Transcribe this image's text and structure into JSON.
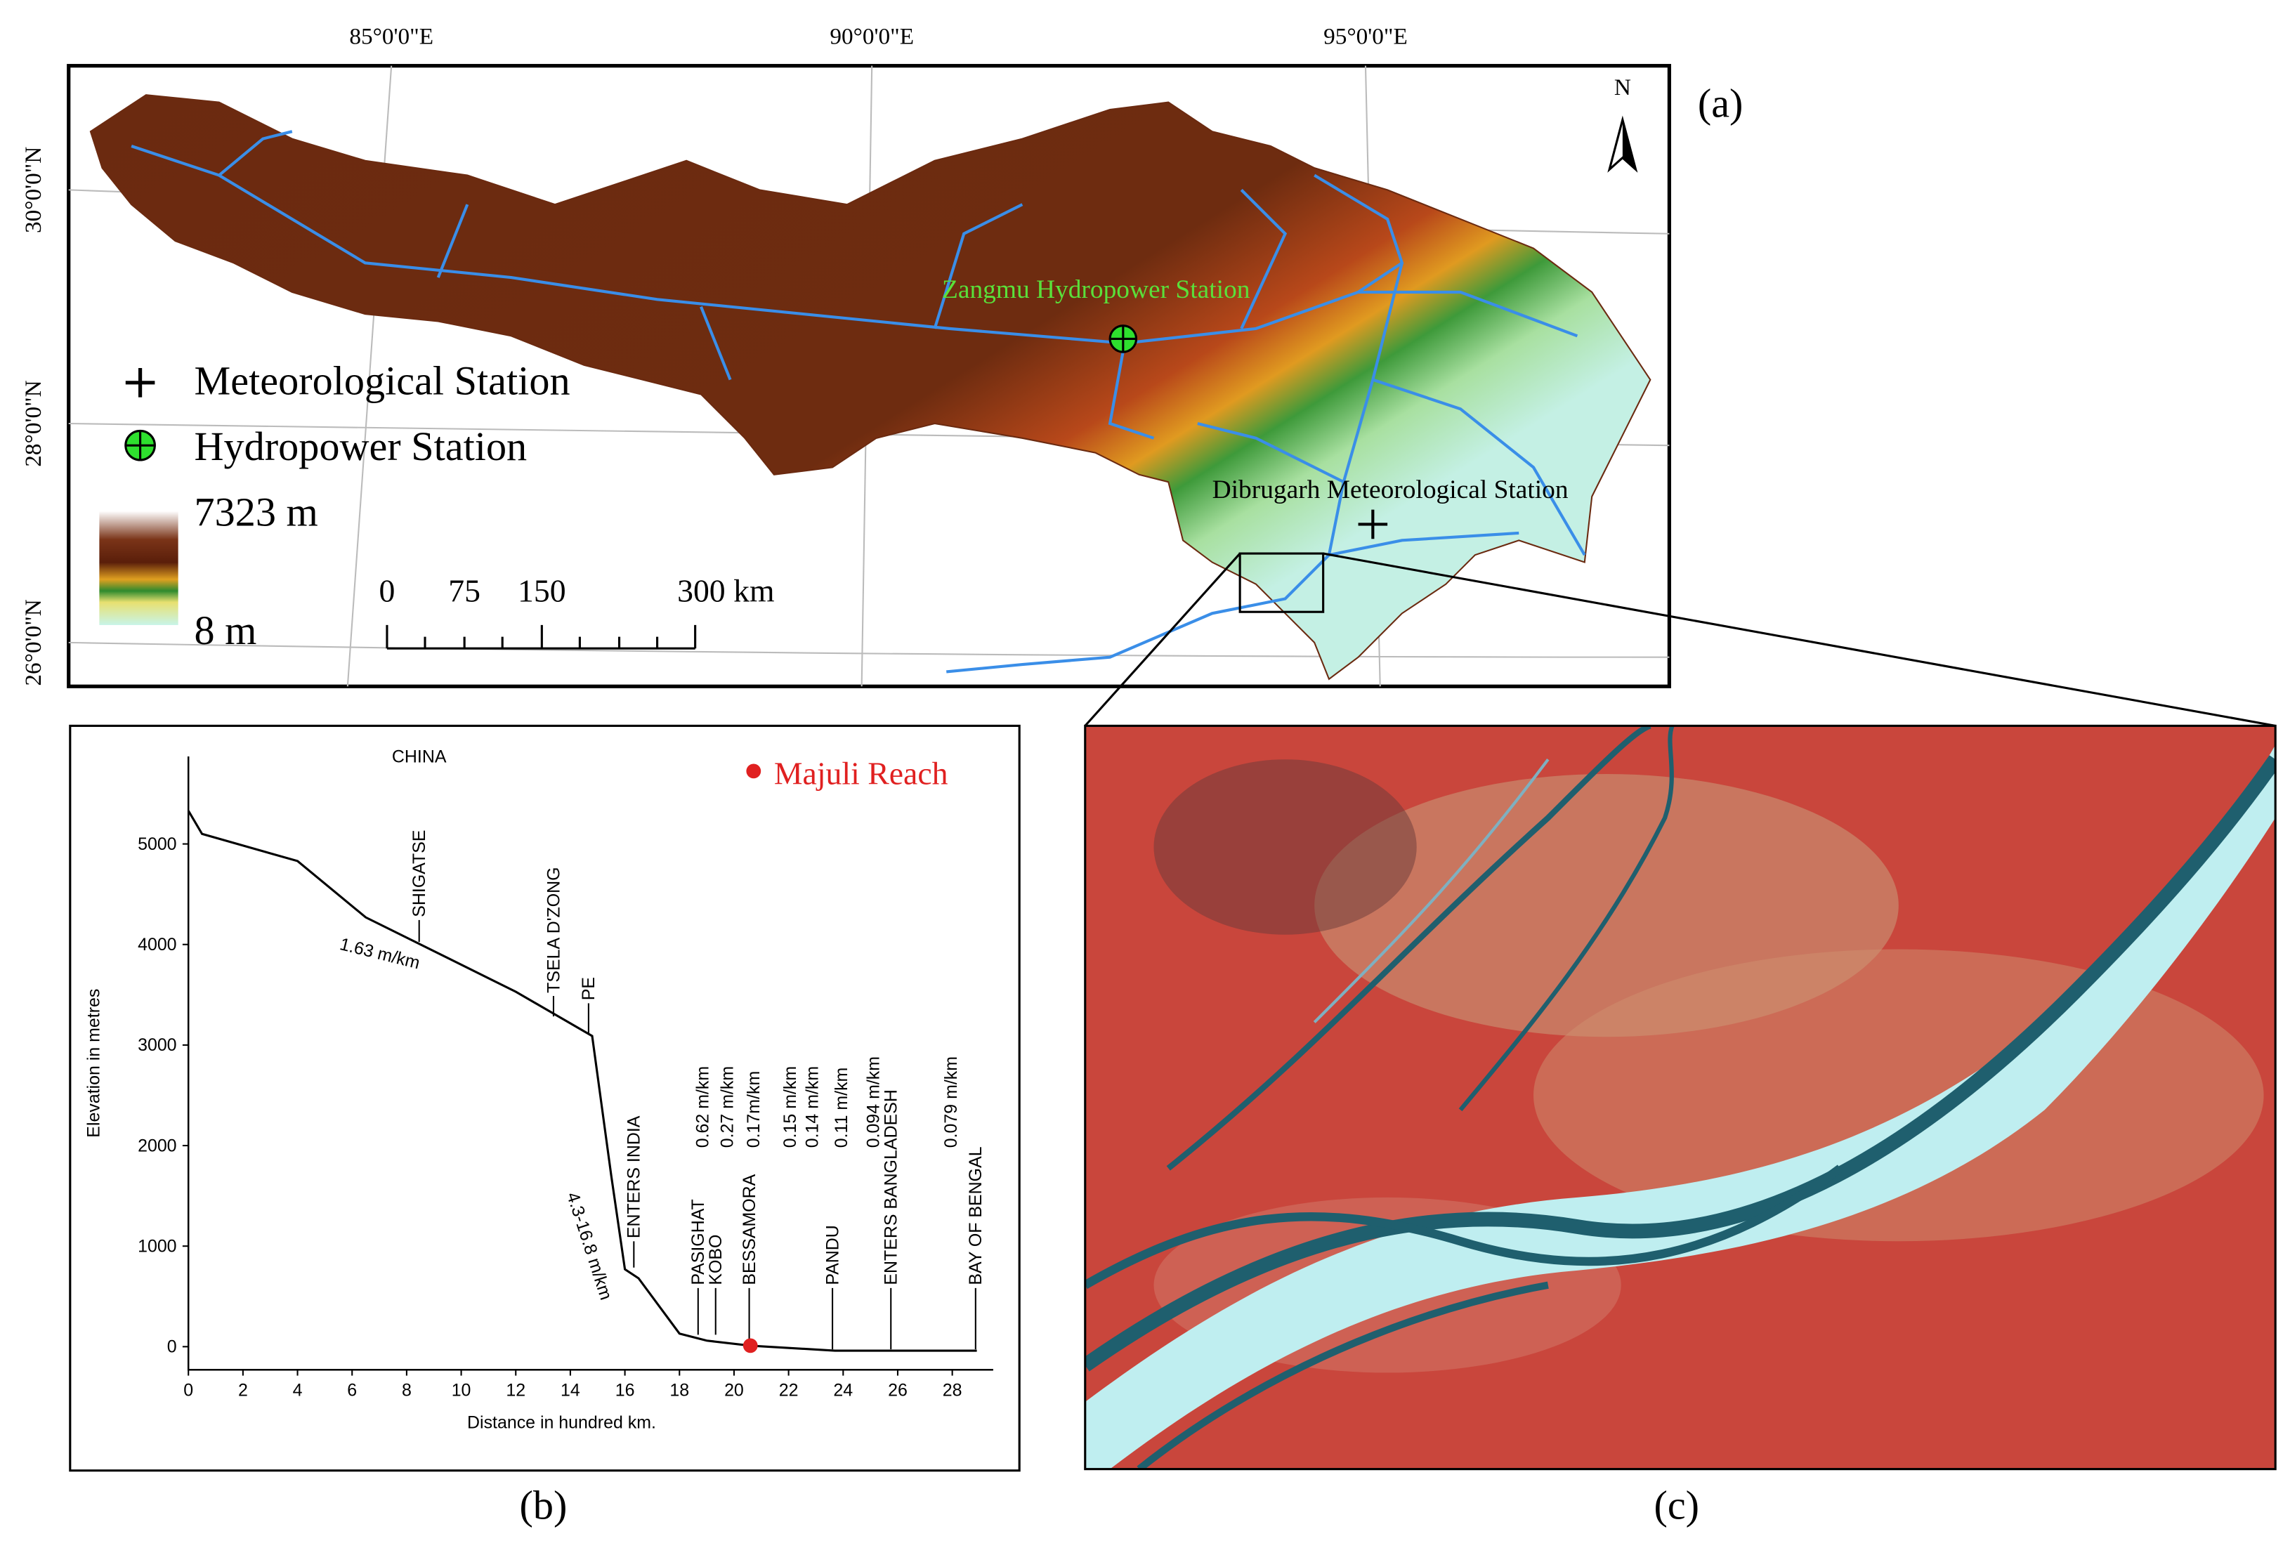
{
  "map": {
    "panel_label": "(a)",
    "north": "N",
    "lon_labels": [
      "85°0'0\"E",
      "90°0'0\"E",
      "95°0'0\"E"
    ],
    "lat_labels": [
      "30°0'0\"N",
      "28°0'0\"N",
      "26°0'0\"N"
    ],
    "hydropower_station": "Zangmu Hydropower Station",
    "meteorological_station": "Dibrugarh Meteorological Station",
    "legend": [
      "Meteorological Station",
      "Hydropower Station"
    ],
    "elevation_max": "7323 m",
    "elevation_min": "8 m",
    "scale_bar": [
      "0",
      "75",
      "150",
      "300 km"
    ]
  },
  "chart_data": {
    "type": "line",
    "panel_label": "(b)",
    "header": "CHINA",
    "x_label": "Distance in hundred km.",
    "y_label": "Elevation in metres",
    "x": [
      0,
      0.5,
      4,
      6.5,
      12,
      14.8,
      15.5,
      16,
      16.5,
      18,
      19,
      20.6,
      23.7,
      28.9
    ],
    "values": [
      5330,
      5100,
      4830,
      4270,
      3530,
      3090,
      1700,
      770,
      680,
      130,
      60,
      10,
      -40,
      -40
    ],
    "color": "#000000",
    "xlim": [
      0,
      29.5
    ],
    "ylim": [
      -230,
      5870
    ],
    "xticks": [
      0,
      2,
      4,
      6,
      8,
      10,
      12,
      14,
      16,
      18,
      20,
      22,
      24,
      26,
      28
    ],
    "yticks": [
      0,
      1000,
      2000,
      3000,
      4000,
      5000
    ],
    "places": [
      "SHIGATSE",
      "TSELA D'ZONG",
      "PE",
      "ENTERS INDIA",
      "PASIGHAT",
      "KOBO",
      "BESSAMORA",
      "PANDU",
      "ENTERS BANGLADESH",
      "BAY OF BENGAL"
    ],
    "slopes": [
      "1.63 m/km",
      "4.3-16.8 m/km",
      "0.62 m/km",
      "0.27 m/km",
      "0.17m/km",
      "0.15 m/km",
      "0.14 m/km",
      "0.11 m/km",
      "0.094 m/km",
      "0.079 m/km"
    ],
    "marker": {
      "name": "Majuli Reach",
      "x": 20.6,
      "y": 10,
      "color": "#e02020"
    }
  },
  "image": {
    "panel_label": "(c)"
  }
}
